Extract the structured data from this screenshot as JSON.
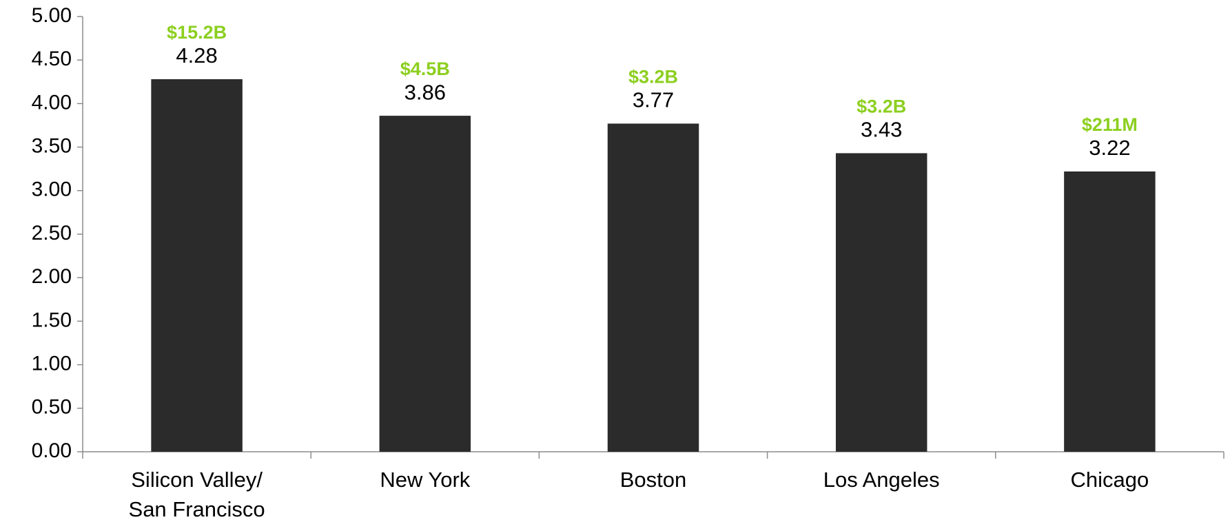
{
  "chart_data": {
    "type": "bar",
    "categories": [
      "Silicon Valley/\nSan Francisco",
      "New York",
      "Boston",
      "Los Angeles",
      "Chicago"
    ],
    "values": [
      4.28,
      3.86,
      3.77,
      3.43,
      3.22
    ],
    "annotations": [
      "$15.2B",
      "$4.5B",
      "$3.2B",
      "$3.2B",
      "$211M"
    ],
    "color": "#2b2b2b",
    "annotation_color": "#8ccf1f",
    "ylim": [
      0,
      5
    ],
    "yticks": [
      {
        "value": 0,
        "label": "0.00"
      },
      {
        "value": 0.5,
        "label": "0.50"
      },
      {
        "value": 1,
        "label": "1.00"
      },
      {
        "value": 1.5,
        "label": "1.50"
      },
      {
        "value": 2,
        "label": "2.00"
      },
      {
        "value": 2.5,
        "label": "2.50"
      },
      {
        "value": 3,
        "label": "3.00"
      },
      {
        "value": 3.5,
        "label": "3.50"
      },
      {
        "value": 4,
        "label": "4.00"
      },
      {
        "value": 4.5,
        "label": "4.50"
      },
      {
        "value": 5,
        "label": "5.00"
      }
    ],
    "grid": false
  }
}
